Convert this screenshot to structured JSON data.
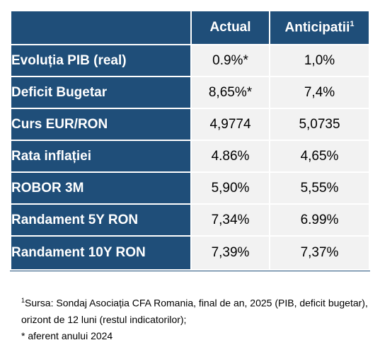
{
  "table": {
    "headers": {
      "label": "",
      "actual": "Actual",
      "anticipated": "Anticipatii",
      "anticipated_mark": "1"
    },
    "rows": [
      {
        "label": "Evoluția PIB (real)",
        "actual": "0.9%*",
        "anticipated": "1,0%"
      },
      {
        "label": "Deficit Bugetar",
        "actual": "8,65%*",
        "anticipated": "7,4%"
      },
      {
        "label": "Curs EUR/RON",
        "actual": "4,9774",
        "anticipated": "5,0735"
      },
      {
        "label": "Rata inflației",
        "actual": "4.86%",
        "anticipated": "4,65%"
      },
      {
        "label": "ROBOR 3M",
        "actual": "5,90%",
        "anticipated": "5,55%"
      },
      {
        "label": "Randament 5Y RON",
        "actual": "7,34%",
        "anticipated": "6.99%"
      },
      {
        "label": "Randament 10Y RON",
        "actual": "7,39%",
        "anticipated": "7,37%"
      }
    ],
    "colors": {
      "header_bg": "#1f4e79",
      "cell_bg": "#f2f2f2",
      "header_text": "#ffffff"
    }
  },
  "notes": {
    "source_mark": "1",
    "source_text": "Sursa: Sondaj Asociația CFA Romania, final de an, 2025 (PIB, deficit bugetar), orizont de 12 luni (restul indicatorilor);",
    "asterisk_text": "* aferent anului 2024"
  }
}
